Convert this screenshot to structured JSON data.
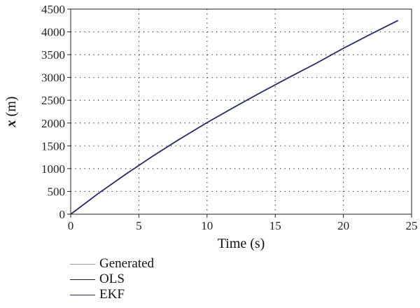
{
  "chart_data": {
    "type": "line",
    "title": "",
    "xlabel": "Time (s)",
    "ylabel_var": "x",
    "ylabel_unit": " (m)",
    "xlim": [
      0,
      25
    ],
    "ylim": [
      0,
      4500
    ],
    "xticks": [
      0,
      5,
      10,
      15,
      20,
      25
    ],
    "yticks": [
      0,
      500,
      1000,
      1500,
      2000,
      2500,
      3000,
      3500,
      4000,
      4500
    ],
    "grid": true,
    "grid_style": "dotted",
    "legend_position": "bottom-left (below plot)",
    "x": [
      0,
      2,
      4,
      6,
      8,
      10,
      12,
      14,
      16,
      18,
      20,
      22,
      24
    ],
    "series": [
      {
        "name": "Generated",
        "color": "#9a9a9a",
        "values": [
          0,
          450,
          870,
          1270,
          1650,
          2010,
          2350,
          2680,
          3000,
          3310,
          3640,
          3950,
          4250
        ]
      },
      {
        "name": "OLS",
        "color": "#1a1a1a",
        "values": [
          0,
          450,
          870,
          1270,
          1650,
          2010,
          2350,
          2680,
          3000,
          3310,
          3640,
          3950,
          4250
        ]
      },
      {
        "name": "EKF",
        "color": "#2b2d6e",
        "values": [
          0,
          450,
          870,
          1270,
          1650,
          2010,
          2350,
          2680,
          3000,
          3310,
          3640,
          3950,
          4250
        ]
      }
    ]
  }
}
